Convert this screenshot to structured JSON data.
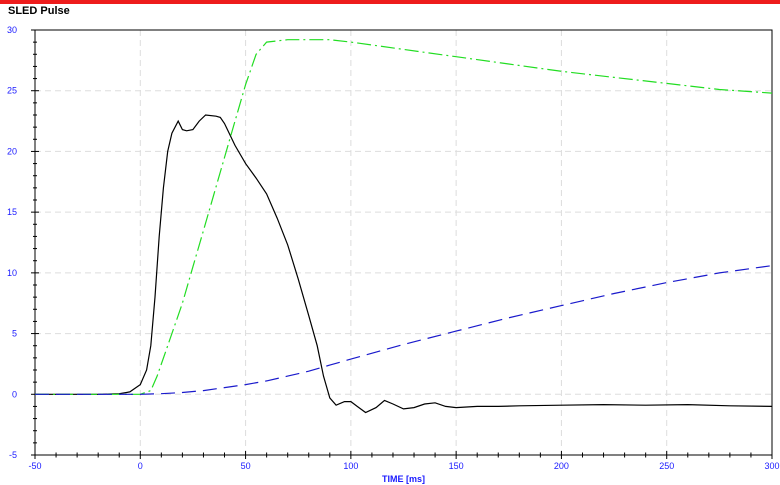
{
  "chart_data": {
    "type": "line",
    "title": "SLED Pulse",
    "xlabel": "TIME [ms]",
    "ylabel": "",
    "xlim": [
      -50,
      300
    ],
    "ylim": [
      -5,
      30
    ],
    "grid": true,
    "x_ticks": [
      "-50",
      "0",
      "50",
      "100",
      "150",
      "200",
      "250",
      "300"
    ],
    "y_ticks": [
      "-5",
      "0",
      "5",
      "10",
      "15",
      "20",
      "25",
      "30"
    ],
    "series": [
      {
        "color": "#000000",
        "style": "solid",
        "points": [
          [
            -50,
            0
          ],
          [
            -20,
            0
          ],
          [
            -10,
            0.05
          ],
          [
            -5,
            0.2
          ],
          [
            0,
            0.8
          ],
          [
            3,
            2
          ],
          [
            5,
            4
          ],
          [
            7,
            8
          ],
          [
            9,
            13
          ],
          [
            11,
            17
          ],
          [
            13,
            20
          ],
          [
            15,
            21.5
          ],
          [
            18,
            22.5
          ],
          [
            20,
            21.8
          ],
          [
            22,
            21.7
          ],
          [
            25,
            21.8
          ],
          [
            28,
            22.5
          ],
          [
            31,
            23
          ],
          [
            36,
            22.9
          ],
          [
            38,
            22.8
          ],
          [
            40,
            22.3
          ],
          [
            45,
            20.5
          ],
          [
            50,
            19
          ],
          [
            55,
            17.8
          ],
          [
            60,
            16.5
          ],
          [
            65,
            14.5
          ],
          [
            70,
            12.3
          ],
          [
            75,
            9.5
          ],
          [
            80,
            6.5
          ],
          [
            84,
            4
          ],
          [
            87,
            1.5
          ],
          [
            90,
            -0.3
          ],
          [
            93,
            -0.9
          ],
          [
            97,
            -0.6
          ],
          [
            100,
            -0.6
          ],
          [
            103,
            -1
          ],
          [
            107,
            -1.5
          ],
          [
            112,
            -1.1
          ],
          [
            116,
            -0.5
          ],
          [
            120,
            -0.8
          ],
          [
            125,
            -1.2
          ],
          [
            130,
            -1.1
          ],
          [
            135,
            -0.8
          ],
          [
            140,
            -0.7
          ],
          [
            145,
            -1.0
          ],
          [
            150,
            -1.1
          ],
          [
            160,
            -1.0
          ],
          [
            170,
            -1.0
          ],
          [
            180,
            -0.95
          ],
          [
            200,
            -0.9
          ],
          [
            220,
            -0.85
          ],
          [
            240,
            -0.9
          ],
          [
            260,
            -0.85
          ],
          [
            280,
            -0.95
          ],
          [
            300,
            -1.0
          ]
        ]
      },
      {
        "color": "#22dd22",
        "style": "dash-dot",
        "points": [
          [
            -50,
            0
          ],
          [
            0,
            0
          ],
          [
            5,
            0.3
          ],
          [
            8,
            1.5
          ],
          [
            12,
            3.5
          ],
          [
            16,
            5.5
          ],
          [
            20,
            7.5
          ],
          [
            25,
            10.5
          ],
          [
            30,
            13.5
          ],
          [
            35,
            16.5
          ],
          [
            40,
            19.5
          ],
          [
            45,
            22.5
          ],
          [
            50,
            25.5
          ],
          [
            55,
            28
          ],
          [
            60,
            29
          ],
          [
            70,
            29.2
          ],
          [
            85,
            29.2
          ],
          [
            90,
            29.2
          ],
          [
            100,
            29.0
          ],
          [
            125,
            28.4
          ],
          [
            150,
            27.8
          ],
          [
            175,
            27.2
          ],
          [
            200,
            26.6
          ],
          [
            225,
            26.1
          ],
          [
            250,
            25.6
          ],
          [
            275,
            25.1
          ],
          [
            300,
            24.8
          ]
        ]
      },
      {
        "color": "#1a1acc",
        "style": "dashed",
        "points": [
          [
            -50,
            0
          ],
          [
            0,
            0
          ],
          [
            10,
            0.05
          ],
          [
            20,
            0.15
          ],
          [
            30,
            0.3
          ],
          [
            40,
            0.55
          ],
          [
            50,
            0.8
          ],
          [
            60,
            1.1
          ],
          [
            70,
            1.5
          ],
          [
            80,
            1.9
          ],
          [
            90,
            2.4
          ],
          [
            100,
            2.9
          ],
          [
            125,
            4.1
          ],
          [
            150,
            5.2
          ],
          [
            175,
            6.3
          ],
          [
            200,
            7.3
          ],
          [
            225,
            8.3
          ],
          [
            250,
            9.2
          ],
          [
            275,
            10.0
          ],
          [
            300,
            10.6
          ]
        ]
      }
    ]
  }
}
